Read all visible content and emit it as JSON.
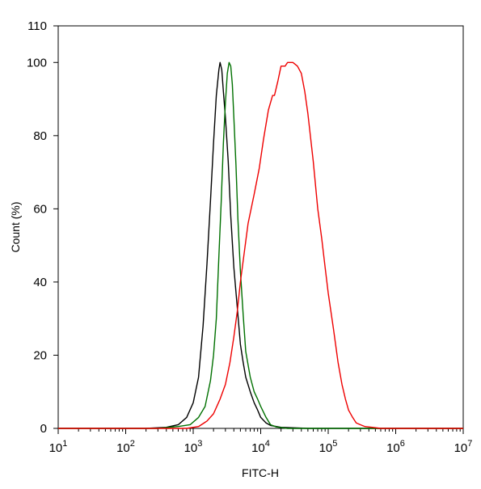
{
  "chart_data": {
    "type": "line",
    "title": "",
    "xlabel": "FITC-H",
    "ylabel": "Count  (%)",
    "xscale": "log",
    "xlim": [
      10,
      10000000
    ],
    "ylim": [
      0,
      110
    ],
    "grid": false,
    "legend": "none",
    "x_ticks": [
      {
        "base": "10",
        "exp": "1",
        "value": 10
      },
      {
        "base": "10",
        "exp": "2",
        "value": 100
      },
      {
        "base": "10",
        "exp": "3",
        "value": 1000
      },
      {
        "base": "10",
        "exp": "4",
        "value": 10000
      },
      {
        "base": "10",
        "exp": "5",
        "value": 100000
      },
      {
        "base": "10",
        "exp": "6",
        "value": 1000000
      },
      {
        "base": "10",
        "exp": "7",
        "value": 10000000
      }
    ],
    "y_ticks": [
      {
        "label": "0",
        "value": 0
      },
      {
        "label": "20",
        "value": 20
      },
      {
        "label": "40",
        "value": 40
      },
      {
        "label": "60",
        "value": 60
      },
      {
        "label": "80",
        "value": 80
      },
      {
        "label": "100",
        "value": 100
      },
      {
        "label": "110",
        "value": 110
      }
    ],
    "series": [
      {
        "color": "#000000",
        "points": [
          [
            10,
            0
          ],
          [
            200,
            0
          ],
          [
            400,
            0.3
          ],
          [
            600,
            1
          ],
          [
            800,
            3
          ],
          [
            1000,
            7
          ],
          [
            1200,
            14
          ],
          [
            1400,
            28
          ],
          [
            1600,
            45
          ],
          [
            1800,
            62
          ],
          [
            2000,
            78
          ],
          [
            2200,
            91
          ],
          [
            2400,
            98
          ],
          [
            2500,
            100
          ],
          [
            2650,
            98
          ],
          [
            2800,
            92
          ],
          [
            3000,
            85
          ],
          [
            3300,
            73
          ],
          [
            3600,
            58
          ],
          [
            4000,
            44
          ],
          [
            4500,
            33
          ],
          [
            5000,
            23
          ],
          [
            5500,
            18
          ],
          [
            6000,
            14
          ],
          [
            7000,
            10
          ],
          [
            8000,
            7
          ],
          [
            9000,
            5
          ],
          [
            10000,
            3
          ],
          [
            12000,
            1.5
          ],
          [
            14000,
            0.8
          ],
          [
            20000,
            0.3
          ],
          [
            50000,
            0
          ],
          [
            10000000,
            0
          ]
        ]
      },
      {
        "color": "#007000",
        "points": [
          [
            10,
            0
          ],
          [
            300,
            0
          ],
          [
            600,
            0.5
          ],
          [
            900,
            1
          ],
          [
            1200,
            3
          ],
          [
            1500,
            6
          ],
          [
            1800,
            13
          ],
          [
            2000,
            20
          ],
          [
            2200,
            30
          ],
          [
            2400,
            47
          ],
          [
            2600,
            62
          ],
          [
            2800,
            78
          ],
          [
            3000,
            89
          ],
          [
            3200,
            97
          ],
          [
            3400,
            100
          ],
          [
            3600,
            99
          ],
          [
            3800,
            94
          ],
          [
            4000,
            85
          ],
          [
            4300,
            72
          ],
          [
            4600,
            57
          ],
          [
            5000,
            43
          ],
          [
            5500,
            31
          ],
          [
            6000,
            21
          ],
          [
            7000,
            14
          ],
          [
            8000,
            10
          ],
          [
            9000,
            8
          ],
          [
            10000,
            6
          ],
          [
            12000,
            3
          ],
          [
            14000,
            1
          ],
          [
            17000,
            0.4
          ],
          [
            25000,
            0
          ],
          [
            10000000,
            0
          ]
        ]
      },
      {
        "color": "#ee0000",
        "points": [
          [
            10,
            0
          ],
          [
            800,
            0
          ],
          [
            1200,
            0.5
          ],
          [
            1600,
            2
          ],
          [
            2000,
            4
          ],
          [
            2500,
            8
          ],
          [
            3000,
            12
          ],
          [
            3500,
            18
          ],
          [
            4000,
            25
          ],
          [
            4500,
            32
          ],
          [
            5000,
            40
          ],
          [
            5700,
            48
          ],
          [
            6500,
            56
          ],
          [
            8000,
            64
          ],
          [
            9500,
            71
          ],
          [
            11000,
            79
          ],
          [
            13000,
            87
          ],
          [
            15000,
            91
          ],
          [
            16000,
            91
          ],
          [
            18000,
            95
          ],
          [
            20000,
            99
          ],
          [
            23000,
            99
          ],
          [
            25000,
            100
          ],
          [
            30000,
            100
          ],
          [
            35000,
            99
          ],
          [
            40000,
            97
          ],
          [
            45000,
            92
          ],
          [
            50000,
            86
          ],
          [
            60000,
            73
          ],
          [
            70000,
            60
          ],
          [
            80000,
            52
          ],
          [
            90000,
            44
          ],
          [
            100000,
            37
          ],
          [
            120000,
            27
          ],
          [
            140000,
            18
          ],
          [
            160000,
            12
          ],
          [
            180000,
            8
          ],
          [
            200000,
            5
          ],
          [
            230000,
            3
          ],
          [
            260000,
            1.5
          ],
          [
            300000,
            1
          ],
          [
            350000,
            0.5
          ],
          [
            450000,
            0.3
          ],
          [
            600000,
            0
          ],
          [
            10000000,
            0
          ]
        ]
      }
    ]
  }
}
